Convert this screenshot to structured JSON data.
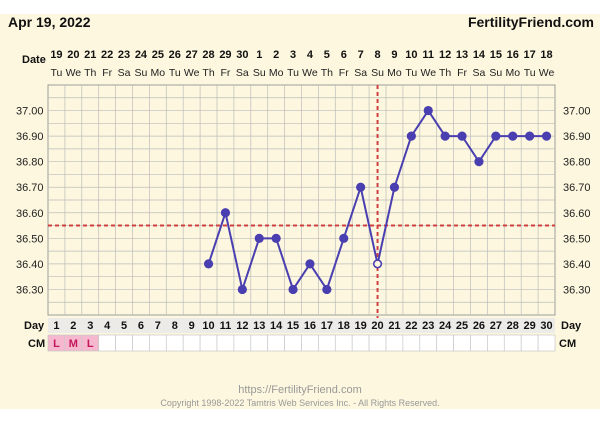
{
  "header": {
    "date": "Apr 19, 2022",
    "brand": "FertilityFriend.com"
  },
  "row_labels": {
    "date": "Date",
    "day": "Day",
    "cm": "CM"
  },
  "footer": {
    "url": "https://FertilityFriend.com",
    "copyright": "Copyright 1998-2022 Tamtris Web Services Inc. - All Rights Reserved."
  },
  "chart_data": {
    "type": "line",
    "days": [
      1,
      2,
      3,
      4,
      5,
      6,
      7,
      8,
      9,
      10,
      11,
      12,
      13,
      14,
      15,
      16,
      17,
      18,
      19,
      20,
      21,
      22,
      23,
      24,
      25,
      26,
      27,
      28,
      29,
      30
    ],
    "dates": [
      "19",
      "20",
      "21",
      "22",
      "23",
      "24",
      "25",
      "26",
      "27",
      "28",
      "29",
      "30",
      "1",
      "2",
      "3",
      "4",
      "5",
      "6",
      "7",
      "8",
      "9",
      "10",
      "11",
      "12",
      "13",
      "14",
      "15",
      "16",
      "17",
      "18"
    ],
    "weekdays": [
      "Tu",
      "We",
      "Th",
      "Fr",
      "Sa",
      "Su",
      "Mo",
      "Tu",
      "We",
      "Th",
      "Fr",
      "Sa",
      "Su",
      "Mo",
      "Tu",
      "We",
      "Th",
      "Fr",
      "Sa",
      "Su",
      "Mo",
      "Tu",
      "We",
      "Th",
      "Fr",
      "Sa",
      "Su",
      "Mo",
      "Tu",
      "We"
    ],
    "temperatures": [
      null,
      null,
      null,
      null,
      null,
      null,
      null,
      null,
      null,
      36.4,
      36.6,
      36.3,
      36.5,
      36.5,
      36.3,
      36.4,
      36.3,
      36.5,
      36.7,
      36.4,
      36.7,
      36.9,
      37.0,
      36.9,
      36.9,
      36.8,
      36.9,
      36.9,
      36.9,
      36.9
    ],
    "open_point_days": [
      20
    ],
    "cervical_mucus": [
      "L",
      "M",
      "L",
      "",
      "",
      "",
      "",
      "",
      "",
      "",
      "",
      "",
      "",
      "",
      "",
      "",
      "",
      "",
      "",
      "",
      "",
      "",
      "",
      "",
      "",
      "",
      "",
      "",
      "",
      ""
    ],
    "y_ticks": [
      "37.00",
      "36.90",
      "36.80",
      "36.70",
      "36.60",
      "36.50",
      "36.40",
      "36.30"
    ],
    "ylim": [
      36.2,
      37.1
    ],
    "coverline": 36.55,
    "ovulation_day": 20,
    "colors": {
      "line": "#4a3fb0",
      "reference": "#d04040",
      "cm_fill": "#f5b8cf",
      "cm_text": "#c2185b",
      "grid": "#bdbdbd",
      "background": "#fcf7de"
    }
  }
}
